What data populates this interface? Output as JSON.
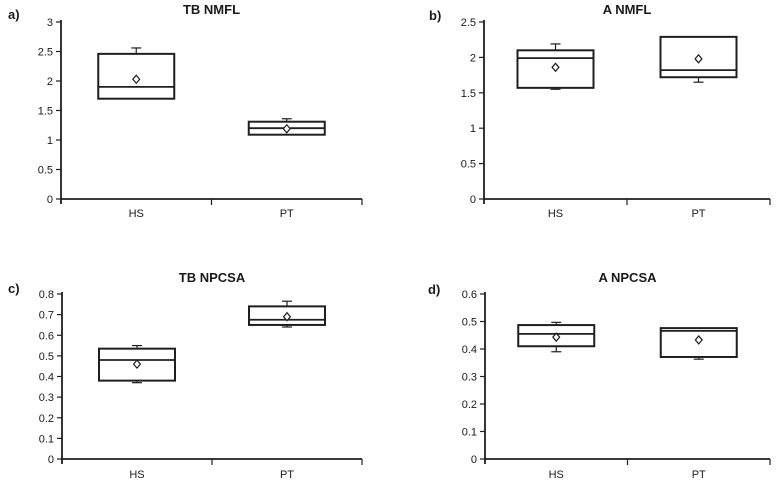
{
  "figure_title": "Box plot figure with four panels",
  "colors": {
    "line": "#1f1f1f",
    "box_fill": "#ffffff",
    "background": "#ffffff",
    "text": "#1a1a1a"
  },
  "chart_data": [
    {
      "type": "box",
      "panel_label": "a)",
      "title": "TB NMFL",
      "categories": [
        "HS",
        "PT"
      ],
      "xlabel": "",
      "ylabel": "",
      "ylim": [
        0,
        3
      ],
      "yticks": [
        "0",
        "0.5",
        "1",
        "1.5",
        "2",
        "2.5",
        "3"
      ],
      "grid": false,
      "series": [
        {
          "category": "HS",
          "whisker_low": 1.7,
          "q1": 1.7,
          "median": 1.9,
          "q3": 2.46,
          "whisker_high": 2.56,
          "mean": 2.03
        },
        {
          "category": "PT",
          "whisker_low": 1.09,
          "q1": 1.09,
          "median": 1.2,
          "q3": 1.31,
          "whisker_high": 1.36,
          "mean": 1.19
        }
      ]
    },
    {
      "type": "box",
      "panel_label": "b)",
      "title": "A NMFL",
      "categories": [
        "HS",
        "PT"
      ],
      "xlabel": "",
      "ylabel": "",
      "ylim": [
        0,
        2.5
      ],
      "yticks": [
        "0",
        "0.5",
        "1",
        "1.5",
        "2",
        "2.5"
      ],
      "grid": false,
      "series": [
        {
          "category": "HS",
          "whisker_low": 1.55,
          "q1": 1.57,
          "median": 1.99,
          "q3": 2.1,
          "whisker_high": 2.19,
          "mean": 1.86
        },
        {
          "category": "PT",
          "whisker_low": 1.65,
          "q1": 1.72,
          "median": 1.82,
          "q3": 2.29,
          "whisker_high": 2.29,
          "mean": 1.98
        }
      ]
    },
    {
      "type": "box",
      "panel_label": "c)",
      "title": "TB NPCSA",
      "categories": [
        "HS",
        "PT"
      ],
      "xlabel": "",
      "ylabel": "",
      "ylim": [
        0,
        0.8
      ],
      "yticks": [
        "0",
        "0.1",
        "0.2",
        "0.3",
        "0.4",
        "0.5",
        "0.6",
        "0.7",
        "0.8"
      ],
      "grid": false,
      "series": [
        {
          "category": "HS",
          "whisker_low": 0.37,
          "q1": 0.38,
          "median": 0.48,
          "q3": 0.535,
          "whisker_high": 0.55,
          "mean": 0.46
        },
        {
          "category": "PT",
          "whisker_low": 0.64,
          "q1": 0.65,
          "median": 0.675,
          "q3": 0.74,
          "whisker_high": 0.765,
          "mean": 0.69
        }
      ]
    },
    {
      "type": "box",
      "panel_label": "d)",
      "title": "A NPCSA",
      "categories": [
        "HS",
        "PT"
      ],
      "xlabel": "",
      "ylabel": "",
      "ylim": [
        0,
        0.6
      ],
      "yticks": [
        "0",
        "0.1",
        "0.2",
        "0.3",
        "0.4",
        "0.5",
        "0.6"
      ],
      "grid": false,
      "series": [
        {
          "category": "HS",
          "whisker_low": 0.39,
          "q1": 0.41,
          "median": 0.455,
          "q3": 0.487,
          "whisker_high": 0.497,
          "mean": 0.443
        },
        {
          "category": "PT",
          "whisker_low": 0.363,
          "q1": 0.371,
          "median": 0.466,
          "q3": 0.476,
          "whisker_high": 0.476,
          "mean": 0.433
        }
      ]
    }
  ]
}
